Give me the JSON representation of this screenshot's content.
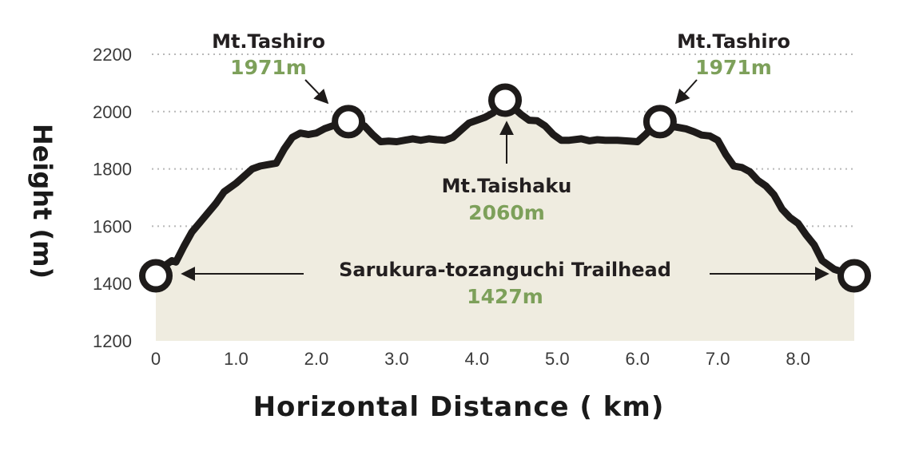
{
  "colors": {
    "fill": "#efece0",
    "line": "#1e1b1a",
    "elevation_text": "#7da05a"
  },
  "chart_data": {
    "type": "area",
    "xlabel": "Horizontal Distance ( km)",
    "ylabel": "Height (m)",
    "xlim": [
      0,
      8.7
    ],
    "ylim": [
      1200,
      2200
    ],
    "yticks": [
      1200,
      1400,
      1600,
      1800,
      2000,
      2200
    ],
    "ytick_labels": [
      "1200",
      "1400",
      "1600",
      "1800",
      "2000",
      "2200"
    ],
    "xticks": [
      0,
      1,
      2,
      3,
      4,
      5,
      6,
      7,
      8
    ],
    "xtick_labels": [
      "0",
      "1.0",
      "2.0",
      "3.0",
      "4.0",
      "5.0",
      "6.0",
      "7.0",
      "8.0"
    ],
    "grid": true,
    "profile": [
      [
        0,
        1427
      ],
      [
        0.1,
        1460
      ],
      [
        0.2,
        1480
      ],
      [
        0.25,
        1475
      ],
      [
        0.35,
        1530
      ],
      [
        0.45,
        1580
      ],
      [
        0.6,
        1630
      ],
      [
        0.75,
        1680
      ],
      [
        0.85,
        1720
      ],
      [
        1.0,
        1750
      ],
      [
        1.1,
        1775
      ],
      [
        1.2,
        1800
      ],
      [
        1.3,
        1810
      ],
      [
        1.4,
        1815
      ],
      [
        1.5,
        1820
      ],
      [
        1.6,
        1870
      ],
      [
        1.7,
        1910
      ],
      [
        1.8,
        1925
      ],
      [
        1.9,
        1920
      ],
      [
        2.0,
        1925
      ],
      [
        2.1,
        1940
      ],
      [
        2.2,
        1950
      ],
      [
        2.3,
        1960
      ],
      [
        2.4,
        1965
      ],
      [
        2.5,
        1960
      ],
      [
        2.6,
        1950
      ],
      [
        2.7,
        1920
      ],
      [
        2.8,
        1895
      ],
      [
        2.9,
        1897
      ],
      [
        3.0,
        1895
      ],
      [
        3.1,
        1900
      ],
      [
        3.2,
        1905
      ],
      [
        3.3,
        1900
      ],
      [
        3.4,
        1905
      ],
      [
        3.5,
        1902
      ],
      [
        3.6,
        1900
      ],
      [
        3.7,
        1910
      ],
      [
        3.8,
        1935
      ],
      [
        3.9,
        1960
      ],
      [
        4.0,
        1970
      ],
      [
        4.1,
        1980
      ],
      [
        4.2,
        1995
      ],
      [
        4.3,
        2025
      ],
      [
        4.35,
        2040
      ],
      [
        4.45,
        2015
      ],
      [
        4.55,
        1990
      ],
      [
        4.65,
        1970
      ],
      [
        4.75,
        1968
      ],
      [
        4.85,
        1950
      ],
      [
        4.95,
        1920
      ],
      [
        5.05,
        1900
      ],
      [
        5.15,
        1900
      ],
      [
        5.3,
        1905
      ],
      [
        5.4,
        1898
      ],
      [
        5.5,
        1902
      ],
      [
        5.6,
        1900
      ],
      [
        5.75,
        1900
      ],
      [
        5.9,
        1897
      ],
      [
        6.0,
        1895
      ],
      [
        6.1,
        1920
      ],
      [
        6.2,
        1950
      ],
      [
        6.28,
        1965
      ],
      [
        6.4,
        1950
      ],
      [
        6.5,
        1945
      ],
      [
        6.6,
        1940
      ],
      [
        6.7,
        1930
      ],
      [
        6.8,
        1918
      ],
      [
        6.9,
        1915
      ],
      [
        7.0,
        1900
      ],
      [
        7.1,
        1850
      ],
      [
        7.2,
        1810
      ],
      [
        7.3,
        1805
      ],
      [
        7.4,
        1790
      ],
      [
        7.5,
        1760
      ],
      [
        7.6,
        1740
      ],
      [
        7.7,
        1710
      ],
      [
        7.8,
        1660
      ],
      [
        7.9,
        1630
      ],
      [
        8.0,
        1610
      ],
      [
        8.1,
        1570
      ],
      [
        8.2,
        1535
      ],
      [
        8.3,
        1480
      ],
      [
        8.45,
        1450
      ],
      [
        8.7,
        1427
      ]
    ],
    "peaks": [
      {
        "name": "Mt.Tashiro",
        "elevation_label": "1971m",
        "x": 2.4,
        "y": 1965
      },
      {
        "name": "Mt.Taishaku",
        "elevation_label": "2060m",
        "x": 4.35,
        "y": 2040
      },
      {
        "name": "Mt.Tashiro",
        "elevation_label": "1971m",
        "x": 6.28,
        "y": 1965
      }
    ],
    "trailhead": {
      "name": "Sarukura-tozanguchi Trailhead",
      "elevation_label": "1427m",
      "start": {
        "x": 0,
        "y": 1427
      },
      "end": {
        "x": 8.7,
        "y": 1427
      }
    }
  }
}
